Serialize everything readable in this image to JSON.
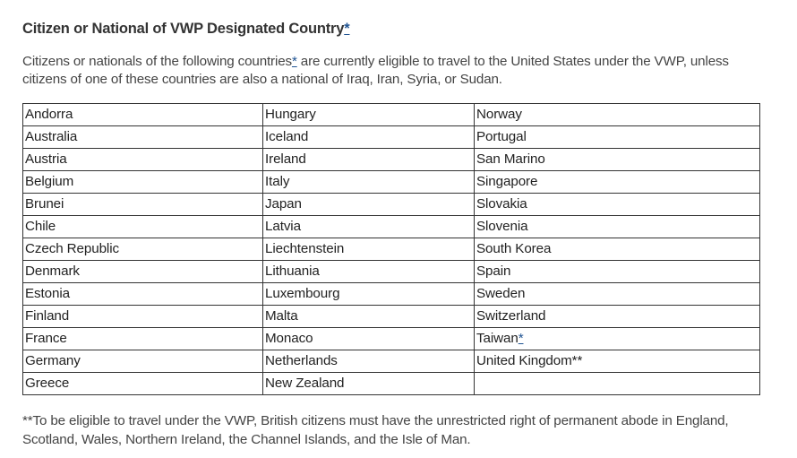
{
  "heading": {
    "text": "Citizen or National of VWP Designated Country",
    "link": "*"
  },
  "intro": {
    "before_link": "Citizens or nationals of the following countries",
    "link": "*",
    "after_link": " are currently eligible to travel to the United States under the VWP, unless citizens of one of these countries are also a national of Iraq, Iran, Syria, or Sudan."
  },
  "table": {
    "rows": [
      [
        "Andorra",
        "Hungary",
        "Norway"
      ],
      [
        "Australia",
        "Iceland",
        "Portugal"
      ],
      [
        "Austria",
        "Ireland",
        "San Marino"
      ],
      [
        "Belgium",
        "Italy",
        "Singapore"
      ],
      [
        "Brunei",
        "Japan",
        "Slovakia"
      ],
      [
        "Chile",
        "Latvia",
        "Slovenia"
      ],
      [
        "Czech Republic",
        "Liechtenstein",
        "South Korea"
      ],
      [
        "Denmark",
        "Lithuania",
        "Spain"
      ],
      [
        "Estonia",
        "Luxembourg",
        "Sweden"
      ],
      [
        "Finland",
        "Malta",
        "Switzerland"
      ],
      [
        "France",
        "Monaco",
        "Taiwan"
      ],
      [
        "Germany",
        "Netherlands",
        "United Kingdom**"
      ],
      [
        "Greece",
        "New Zealand",
        ""
      ]
    ],
    "taiwan_link": "*"
  },
  "footnote": {
    "text": "**To be eligible to travel under the VWP, British citizens must have the unrestricted right of permanent abode in England, Scotland, Wales, Northern Ireland, the Channel Islands, and the Isle of Man."
  }
}
